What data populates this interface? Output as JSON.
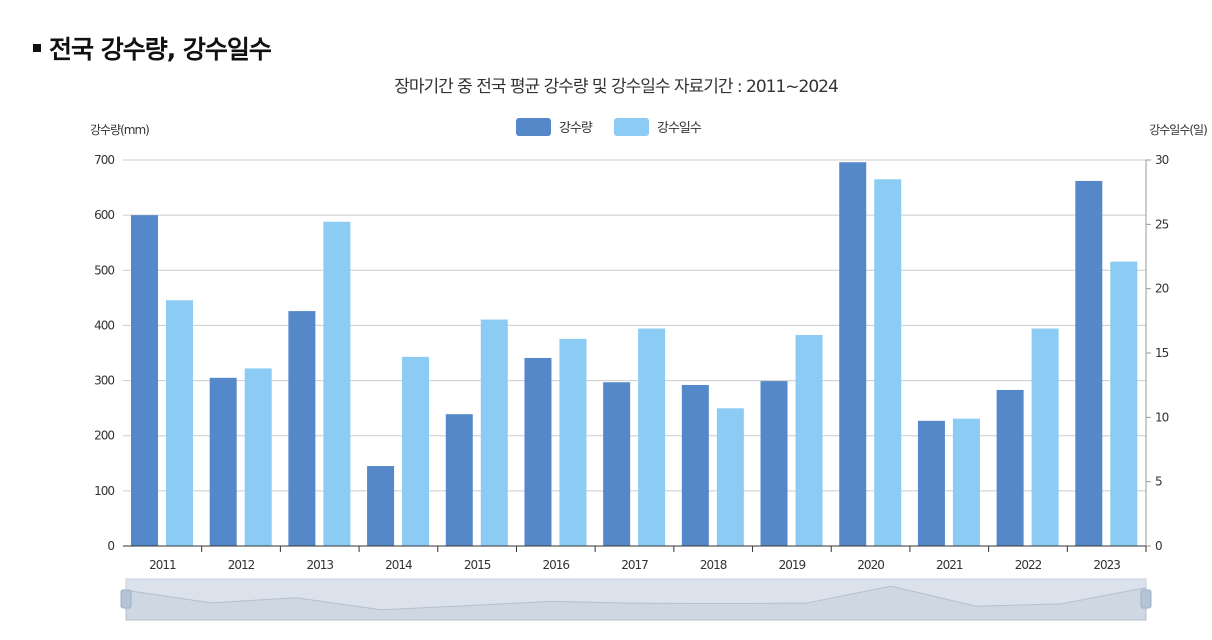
{
  "heading": "전국 강수량, 강수일수",
  "chart_data": {
    "type": "bar",
    "title": "장마기간 중 전국 평균 강수량 및 강수일수 자료기간 : 2011~2024",
    "categories": [
      "2011",
      "2012",
      "2013",
      "2014",
      "2015",
      "2016",
      "2017",
      "2018",
      "2019",
      "2020",
      "2021",
      "2022",
      "2023"
    ],
    "series": [
      {
        "name": "강수량",
        "axis": "left",
        "color": "#5588c8",
        "values": [
          600,
          305,
          426,
          145,
          239,
          341,
          297,
          292,
          299,
          696,
          227,
          283,
          662
        ]
      },
      {
        "name": "강수일수",
        "axis": "right",
        "color": "#8bcbf4",
        "values": [
          19.1,
          13.8,
          25.2,
          14.7,
          17.6,
          16.1,
          16.9,
          10.7,
          16.4,
          28.5,
          9.9,
          16.9,
          22.1
        ]
      }
    ],
    "ylabel_left": "강수량(mm)",
    "ylabel_right": "강수일수(일)",
    "ylim_left": [
      0,
      700
    ],
    "yticks_left": [
      0,
      100,
      200,
      300,
      400,
      500,
      600,
      700
    ],
    "ylim_right": [
      0,
      30
    ],
    "yticks_right": [
      0,
      5,
      10,
      15,
      20,
      25,
      30
    ],
    "grid": true,
    "legend": "top-center",
    "range_slider": true
  }
}
